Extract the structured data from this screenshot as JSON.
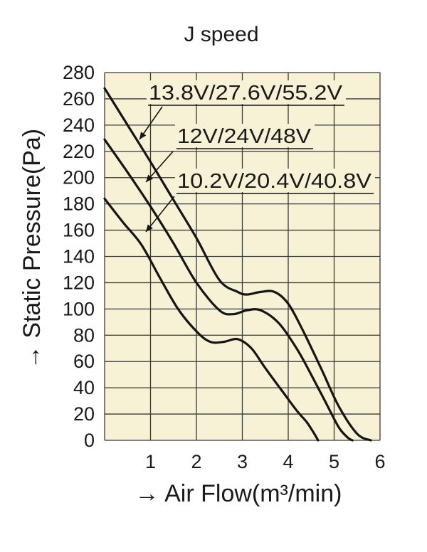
{
  "chart_data": {
    "type": "line",
    "title": "J speed",
    "xlabel": "→ Air Flow(m³/min)",
    "ylabel": "→ Static Pressure(Pa)",
    "xlim": [
      0,
      6
    ],
    "ylim": [
      0,
      280
    ],
    "x_ticks": [
      "1",
      "2",
      "3",
      "4",
      "5",
      "6"
    ],
    "y_ticks": [
      "0",
      "20",
      "40",
      "60",
      "80",
      "100",
      "120",
      "140",
      "160",
      "180",
      "200",
      "220",
      "240",
      "260",
      "280"
    ],
    "grid": true,
    "background_color": "#f7f1d5",
    "series": [
      {
        "name": "13.8V/27.6V/55.2V",
        "x": [
          0,
          0.5,
          1.0,
          1.5,
          2.0,
          2.5,
          2.9,
          3.1,
          3.4,
          3.7,
          4.0,
          4.3,
          4.7,
          5.1,
          5.5,
          5.8
        ],
        "y": [
          268,
          240,
          212,
          183,
          154,
          122,
          113,
          111,
          113,
          113,
          104,
          85,
          56,
          26,
          5,
          0
        ]
      },
      {
        "name": "12V/24V/48V",
        "x": [
          0,
          0.5,
          1.0,
          1.5,
          2.0,
          2.5,
          2.8,
          3.1,
          3.4,
          3.8,
          4.2,
          4.5,
          4.8,
          5.1,
          5.3,
          5.4
        ],
        "y": [
          229,
          204,
          178,
          150,
          120,
          99,
          96,
          99,
          99,
          89,
          69,
          50,
          30,
          10,
          2,
          0
        ]
      },
      {
        "name": "10.2V/20.4V/40.8V",
        "x": [
          0,
          0.4,
          0.8,
          1.2,
          1.6,
          2.0,
          2.3,
          2.6,
          2.9,
          3.2,
          3.5,
          3.9,
          4.2,
          4.4,
          4.55,
          4.65
        ],
        "y": [
          184,
          166,
          149,
          124,
          100,
          83,
          75,
          75,
          77,
          70,
          55,
          36,
          22,
          14,
          6,
          0
        ]
      }
    ]
  }
}
